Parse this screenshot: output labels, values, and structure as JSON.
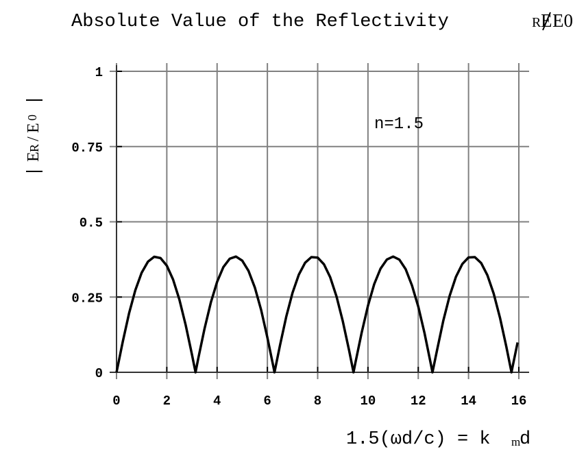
{
  "chart_data": {
    "type": "line",
    "title": "Absolute Value of the Reflectivity",
    "title_suffix": "E_R/E_0",
    "title_suffix_sub": "R",
    "title_suffix_main": "E",
    "title_suffix_tail": "E0",
    "xlabel": "1.5(ωd/c) = k",
    "xlabel_sub": "m",
    "xlabel_tail": "d",
    "ylabel_parts": {
      "E1": "E",
      "R": "R",
      "slash": "/",
      "E2": "E",
      "zero": "0"
    },
    "annotation": "n=1.5",
    "xlim": [
      0,
      16
    ],
    "ylim": [
      0,
      1
    ],
    "grid": true,
    "x_ticks": [
      0,
      2,
      4,
      6,
      8,
      10,
      12,
      14,
      16
    ],
    "x_tick_labels": [
      "0",
      "2",
      "4",
      "6",
      "8",
      "10",
      "12",
      "14",
      "16"
    ],
    "y_ticks": [
      0,
      0.25,
      0.5,
      0.75,
      1
    ],
    "y_tick_labels": [
      "0",
      "0.25",
      "0.5",
      "0.75",
      "1"
    ],
    "line_color": "#000000",
    "grid_color": "#808080",
    "series": [
      {
        "x": [
          0,
          0.25,
          0.5,
          0.75,
          1,
          1.25,
          1.5,
          1.75,
          2,
          2.25,
          2.5,
          2.75,
          3,
          3.1416,
          3.25,
          3.5,
          3.75,
          4,
          4.25,
          4.5,
          4.75,
          5,
          5.25,
          5.5,
          5.75,
          6,
          6.25,
          6.2832,
          6.5,
          6.75,
          7,
          7.25,
          7.5,
          7.75,
          8,
          8.25,
          8.5,
          8.75,
          9,
          9.25,
          9.4248,
          9.5,
          9.75,
          10,
          10.25,
          10.5,
          10.75,
          11,
          11.25,
          11.5,
          11.75,
          12,
          12.25,
          12.5,
          12.5664,
          12.75,
          13,
          13.25,
          13.5,
          13.75,
          14,
          14.25,
          14.5,
          14.75,
          15,
          15.25,
          15.5,
          15.708,
          15.75,
          15.95
        ],
        "y": [
          0,
          0.1025,
          0.1959,
          0.2732,
          0.3309,
          0.3677,
          0.3838,
          0.3794,
          0.3543,
          0.3084,
          0.242,
          0.1571,
          0.0587,
          0,
          0.0451,
          0.1446,
          0.2317,
          0.3007,
          0.3494,
          0.3772,
          0.3844,
          0.371,
          0.337,
          0.282,
          0.2072,
          0.1157,
          0.0138,
          0,
          0.0892,
          0.1843,
          0.264,
          0.3244,
          0.364,
          0.3828,
          0.3812,
          0.3588,
          0.3157,
          0.2519,
          0.1692,
          0.0723,
          0,
          0.0313,
          0.132,
          0.2211,
          0.2929,
          0.3442,
          0.3744,
          0.3846,
          0.3742,
          0.3427,
          0.2884,
          0.2182,
          0.13,
          0.0276,
          0,
          0.075,
          0.1725,
          0.2545,
          0.3176,
          0.3596,
          0.3815,
          0.3826,
          0.363,
          0.3227,
          0.2615,
          0.1813,
          0.0857,
          0,
          0.0175,
          0.0992
        ]
      }
    ]
  }
}
